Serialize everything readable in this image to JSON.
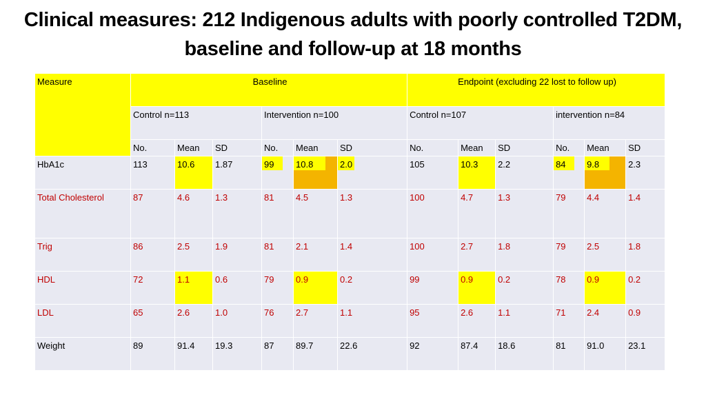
{
  "title": "Clinical measures: 212 Indigenous adults with poorly controlled T2DM, baseline and follow-up at 18 months",
  "header": {
    "measure": "Measure",
    "baseline": "Baseline",
    "endpoint": "Endpoint (excluding 22 lost to follow up)"
  },
  "groups": [
    "Control n=113",
    "Intervention n=100",
    "Control n=107",
    "intervention n=84"
  ],
  "subheaders": [
    "No.",
    "Mean",
    "SD"
  ],
  "rows": [
    {
      "measure": "HbA1c",
      "values": [
        "113",
        "10.6",
        "1.87",
        "99",
        "10.8",
        "2.0",
        "105",
        "10.3",
        "2.2",
        "84",
        "9.8",
        "2.3"
      ]
    },
    {
      "measure": "Total Cholesterol",
      "values": [
        "87",
        "4.6",
        "1.3",
        "81",
        "4.5",
        "1.3",
        "100",
        "4.7",
        "1.3",
        "79",
        "4.4",
        "1.4"
      ]
    },
    {
      "measure": "Trig",
      "values": [
        "86",
        "2.5",
        "1.9",
        "81",
        "2.1",
        "1.4",
        "100",
        "2.7",
        "1.8",
        "79",
        "2.5",
        "1.8"
      ]
    },
    {
      "measure": "HDL",
      "values": [
        "72",
        "1.1",
        "0.6",
        "79",
        "0.9",
        "0.2",
        "99",
        "0.9",
        "0.2",
        "78",
        "0.9",
        "0.2"
      ]
    },
    {
      "measure": "LDL",
      "values": [
        "65",
        "2.6",
        "1.0",
        "76",
        "2.7",
        "1.1",
        "95",
        "2.6",
        "1.1",
        "71",
        "2.4",
        "0.9"
      ]
    },
    {
      "measure": "Weight",
      "values": [
        "89",
        "91.4",
        "19.3",
        "87",
        "89.7",
        "22.6",
        "92",
        "87.4",
        "18.6",
        "81",
        "91.0",
        "23.1"
      ]
    }
  ],
  "colors": {
    "header_highlight": "#ffff00",
    "cell_background": "#e8e9f2",
    "orange_highlight": "#f4b400",
    "red_text": "#c00000"
  }
}
